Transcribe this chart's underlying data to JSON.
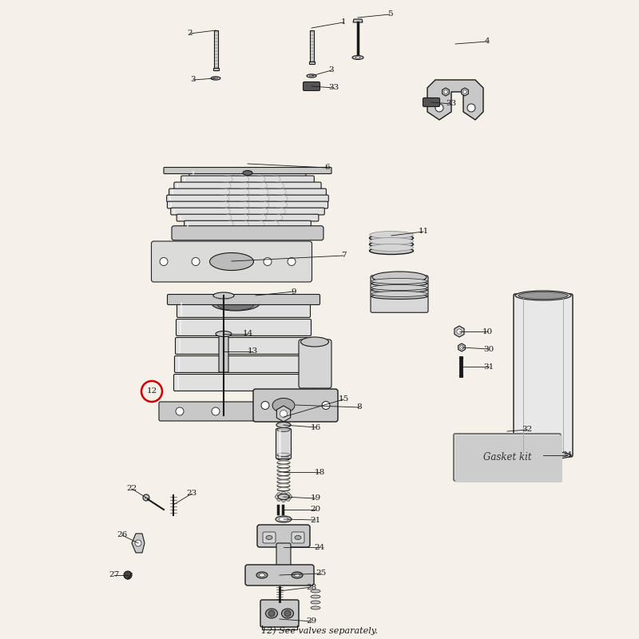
{
  "bg_color": "#F5F0E8",
  "line_color": "#1a1a1a",
  "fill_light": "#E8E8E8",
  "fill_mid": "#C8C8C8",
  "fill_dark": "#888888",
  "fill_chrome": "#D0D0D0",
  "fill_white": "#FFFFFF",
  "red_circle": "#CC0000",
  "gasket_fill": "#DCDCDC",
  "fig_width": 8.0,
  "fig_height": 8.0,
  "dpi": 100,
  "label_fs": 7.5,
  "note_text": "12) See valves separately."
}
